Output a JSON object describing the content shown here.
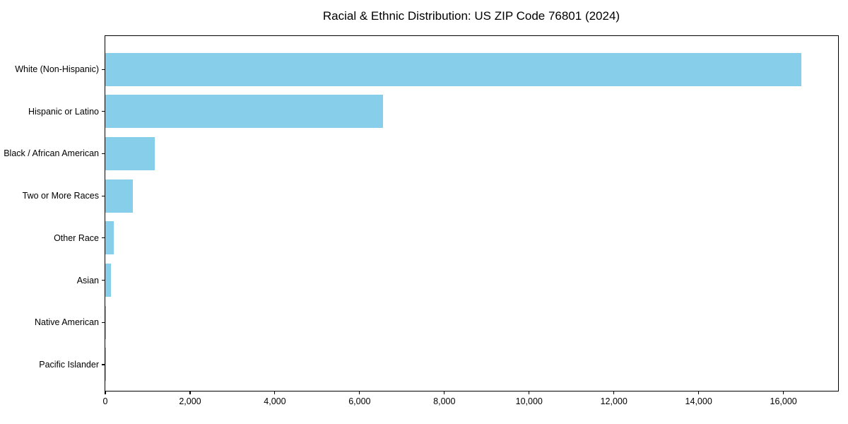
{
  "chart_data": {
    "type": "bar",
    "orientation": "horizontal",
    "title": "Racial & Ethnic Distribution: US ZIP Code 76801 (2024)",
    "categories": [
      "White (Non-Hispanic)",
      "Hispanic or Latino",
      "Black / African American",
      "Two or More Races",
      "Other Race",
      "Asian",
      "Native American",
      "Pacific Islander"
    ],
    "values": [
      16420,
      6560,
      1170,
      650,
      200,
      135,
      15,
      5
    ],
    "xlabel": "",
    "ylabel": "",
    "xlim": [
      0,
      17290
    ],
    "x_ticks": [
      0,
      2000,
      4000,
      6000,
      8000,
      10000,
      12000,
      14000,
      16000
    ],
    "x_tick_labels": [
      "0",
      "2,000",
      "4,000",
      "6,000",
      "8,000",
      "10,000",
      "12,000",
      "14,000",
      "16,000"
    ],
    "bar_color": "#87CEEB",
    "grid": false,
    "legend": null,
    "plot_border_color": "#000000"
  }
}
